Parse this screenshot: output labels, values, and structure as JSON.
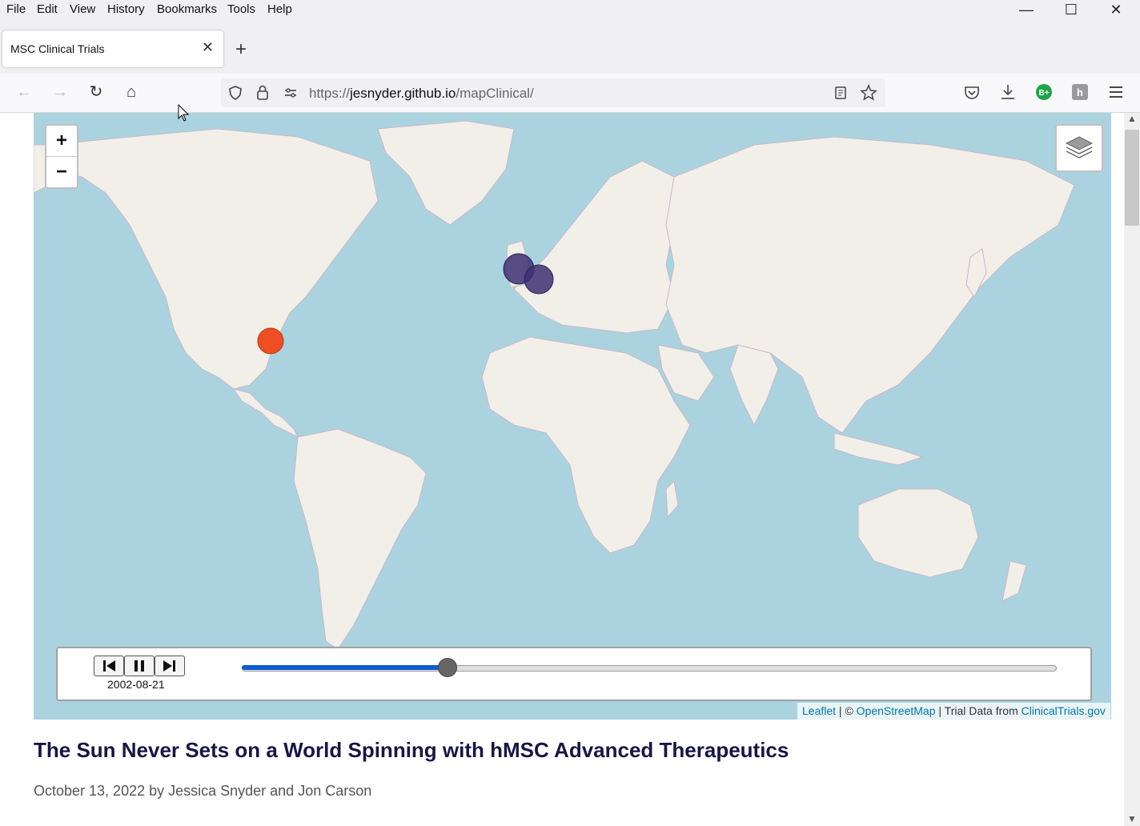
{
  "menu": [
    "File",
    "Edit",
    "View",
    "History",
    "Bookmarks",
    "Tools",
    "Help"
  ],
  "tab": {
    "title": "MSC Clinical Trials"
  },
  "url": {
    "prefix": "https://",
    "domain": "jesnyder.github.io",
    "path": "/mapClinical/"
  },
  "map": {
    "zoom_in": "+",
    "zoom_out": "−",
    "markers": [
      {
        "name": "uk-marker-1",
        "color": "#3d2f73"
      },
      {
        "name": "uk-marker-2",
        "color": "#3d2f73"
      },
      {
        "name": "us-marker",
        "color": "#ef4d23"
      }
    ],
    "timeline": {
      "date": "2002-08-21",
      "progress": 0.252
    },
    "attribution": {
      "leaflet": "Leaflet",
      "sep1": " | © ",
      "osm": "OpenStreetMap",
      "sep2": " | Trial Data from ",
      "ct": "ClinicalTrials.gov"
    }
  },
  "article": {
    "title": "The Sun Never Sets on a World Spinning with hMSC Advanced Therapeutics",
    "byline": "October 13, 2022 by Jessica Snyder and Jon Carson"
  },
  "colors": {
    "water": "#aad3df",
    "land": "#f2efe9",
    "accent": "#0b5bd3",
    "title": "#171548"
  }
}
